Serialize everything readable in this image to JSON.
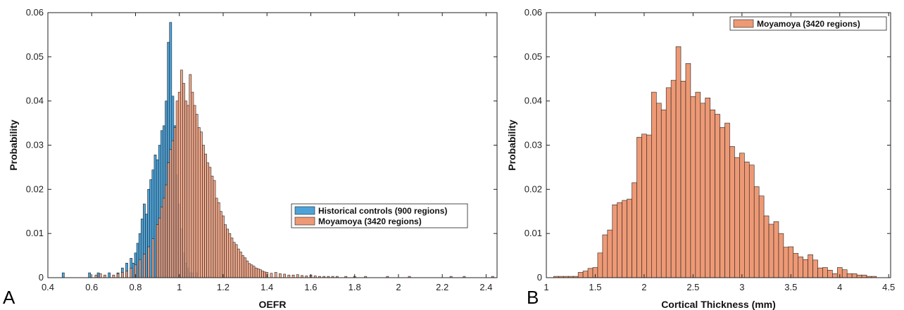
{
  "chart_data": [
    {
      "type": "bar",
      "panel_label": "A",
      "xlabel": "OEFR",
      "ylabel": "Probability",
      "xlim": [
        0.4,
        2.45
      ],
      "ylim": [
        0,
        0.06
      ],
      "xticks": [
        "0.4",
        "0.6",
        "0.8",
        "1",
        "1.2",
        "1.4",
        "1.6",
        "1.8",
        "2",
        "2.2",
        "2.4"
      ],
      "yticks": [
        "0",
        "0.01",
        "0.02",
        "0.03",
        "0.04",
        "0.05",
        "0.06"
      ],
      "bin_width": 0.01,
      "legend_position": "center-right",
      "series": [
        {
          "name": "Historical controls (900 regions)",
          "color": "#4da3d9",
          "x": [
            0.47,
            0.59,
            0.63,
            0.68,
            0.72,
            0.74,
            0.76,
            0.78,
            0.79,
            0.8,
            0.81,
            0.82,
            0.83,
            0.84,
            0.85,
            0.86,
            0.87,
            0.88,
            0.89,
            0.9,
            0.91,
            0.92,
            0.93,
            0.94,
            0.95,
            0.96,
            0.97,
            0.98,
            0.99,
            1.0,
            1.01,
            1.02,
            1.03,
            1.04,
            1.05,
            1.06,
            1.08
          ],
          "values": [
            0.0011,
            0.0011,
            0.0011,
            0.0011,
            0.0011,
            0.0022,
            0.0033,
            0.0044,
            0.0033,
            0.0056,
            0.0078,
            0.01,
            0.0133,
            0.0167,
            0.0144,
            0.02,
            0.0222,
            0.0244,
            0.0278,
            0.0267,
            0.03,
            0.0333,
            0.0344,
            0.04,
            0.0533,
            0.0578,
            0.0411,
            0.0344,
            0.0233,
            0.0167,
            0.0111,
            0.0056,
            0.0033,
            0.0022,
            0.0011,
            0.0011,
            0.0011
          ]
        },
        {
          "name": "Moyamoya (3420 regions)",
          "color": "#ee9975",
          "x": [
            0.62,
            0.64,
            0.66,
            0.7,
            0.72,
            0.74,
            0.76,
            0.78,
            0.8,
            0.82,
            0.84,
            0.86,
            0.88,
            0.9,
            0.91,
            0.92,
            0.93,
            0.94,
            0.95,
            0.96,
            0.97,
            0.98,
            0.99,
            1.0,
            1.01,
            1.02,
            1.03,
            1.04,
            1.05,
            1.06,
            1.07,
            1.08,
            1.09,
            1.1,
            1.11,
            1.12,
            1.13,
            1.14,
            1.15,
            1.16,
            1.17,
            1.18,
            1.19,
            1.2,
            1.21,
            1.22,
            1.23,
            1.24,
            1.25,
            1.26,
            1.27,
            1.28,
            1.29,
            1.3,
            1.31,
            1.32,
            1.33,
            1.34,
            1.35,
            1.36,
            1.37,
            1.38,
            1.39,
            1.4,
            1.42,
            1.44,
            1.46,
            1.48,
            1.5,
            1.52,
            1.54,
            1.56,
            1.58,
            1.6,
            1.62,
            1.64,
            1.66,
            1.68,
            1.7,
            1.72,
            1.76,
            1.8,
            1.85,
            1.95,
            2.05,
            2.24,
            2.3,
            2.43
          ],
          "values": [
            0.0006,
            0.0009,
            0.0006,
            0.0006,
            0.0009,
            0.0012,
            0.0015,
            0.0021,
            0.0029,
            0.0041,
            0.0053,
            0.007,
            0.0088,
            0.012,
            0.0135,
            0.016,
            0.018,
            0.021,
            0.026,
            0.029,
            0.031,
            0.034,
            0.04,
            0.042,
            0.047,
            0.044,
            0.04,
            0.039,
            0.046,
            0.042,
            0.039,
            0.037,
            0.034,
            0.033,
            0.03,
            0.028,
            0.026,
            0.025,
            0.023,
            0.022,
            0.018,
            0.017,
            0.015,
            0.014,
            0.012,
            0.011,
            0.01,
            0.009,
            0.008,
            0.0075,
            0.0065,
            0.0058,
            0.005,
            0.0045,
            0.0038,
            0.0032,
            0.0029,
            0.0026,
            0.0022,
            0.002,
            0.0018,
            0.0015,
            0.0013,
            0.0012,
            0.001,
            0.0012,
            0.0009,
            0.0008,
            0.0006,
            0.0006,
            0.0007,
            0.0005,
            0.0004,
            0.0006,
            0.0004,
            0.0003,
            0.0003,
            0.0003,
            0.0003,
            0.0003,
            0.0003,
            0.0003,
            0.0003,
            0.0003,
            0.0003,
            0.0003,
            0.0003,
            0.0003
          ]
        }
      ]
    },
    {
      "type": "bar",
      "panel_label": "B",
      "xlabel": "Cortical Thickness (mm)",
      "ylabel": "Probability",
      "xlim": [
        1.0,
        4.52
      ],
      "ylim": [
        0,
        0.06
      ],
      "xticks": [
        "1",
        "1.5",
        "2",
        "2.5",
        "3",
        "3.5",
        "4",
        "4.5"
      ],
      "yticks": [
        "0",
        "0.01",
        "0.02",
        "0.03",
        "0.04",
        "0.05",
        "0.06"
      ],
      "bin_width": 0.05,
      "legend_position": "top-right",
      "series": [
        {
          "name": "Moyamoya (3420 regions)",
          "color": "#ee9975",
          "x": [
            1.1,
            1.15,
            1.2,
            1.25,
            1.3,
            1.35,
            1.4,
            1.45,
            1.5,
            1.55,
            1.6,
            1.65,
            1.7,
            1.75,
            1.8,
            1.85,
            1.9,
            1.95,
            2.0,
            2.05,
            2.1,
            2.15,
            2.2,
            2.25,
            2.3,
            2.35,
            2.4,
            2.45,
            2.5,
            2.55,
            2.6,
            2.65,
            2.7,
            2.75,
            2.8,
            2.85,
            2.9,
            2.95,
            3.0,
            3.05,
            3.1,
            3.15,
            3.2,
            3.25,
            3.3,
            3.35,
            3.4,
            3.45,
            3.5,
            3.55,
            3.6,
            3.65,
            3.7,
            3.75,
            3.8,
            3.85,
            3.9,
            3.95,
            4.0,
            4.05,
            4.1,
            4.15,
            4.2,
            4.25,
            4.3,
            4.35
          ],
          "values": [
            0.0003,
            0.0003,
            0.0003,
            0.0003,
            0.0003,
            0.0012,
            0.0015,
            0.0021,
            0.0023,
            0.0056,
            0.0097,
            0.0108,
            0.0165,
            0.017,
            0.0175,
            0.0178,
            0.0215,
            0.0318,
            0.0325,
            0.0323,
            0.042,
            0.0395,
            0.038,
            0.043,
            0.0447,
            0.0523,
            0.0445,
            0.0485,
            0.041,
            0.042,
            0.0395,
            0.0407,
            0.038,
            0.037,
            0.034,
            0.035,
            0.0297,
            0.0272,
            0.0282,
            0.0262,
            0.0255,
            0.0206,
            0.0185,
            0.014,
            0.0121,
            0.0127,
            0.01,
            0.0069,
            0.007,
            0.0055,
            0.0047,
            0.0041,
            0.0052,
            0.004,
            0.0022,
            0.0023,
            0.0017,
            0.0009,
            0.0023,
            0.0018,
            0.0009,
            0.0009,
            0.0006,
            0.0006,
            0.0003,
            0.0003
          ]
        }
      ]
    }
  ]
}
